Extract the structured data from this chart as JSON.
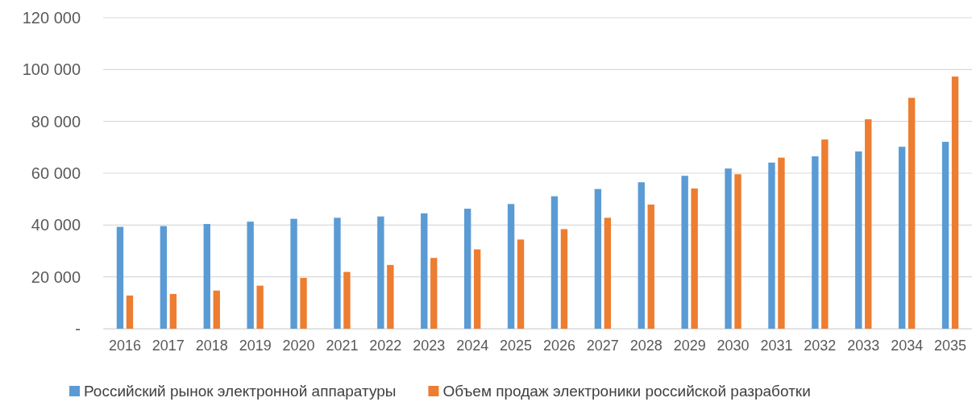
{
  "chart_data": {
    "type": "bar",
    "categories": [
      "2016",
      "2017",
      "2018",
      "2019",
      "2020",
      "2021",
      "2022",
      "2023",
      "2024",
      "2025",
      "2026",
      "2027",
      "2028",
      "2029",
      "2030",
      "2031",
      "2032",
      "2033",
      "2034",
      "2035"
    ],
    "series": [
      {
        "name": "Российский рынок электронной аппаратуры",
        "color": "#5b9bd5",
        "values": [
          39300,
          39600,
          40400,
          41300,
          42400,
          42800,
          43300,
          44500,
          46300,
          48100,
          51100,
          53900,
          56500,
          59000,
          61800,
          64100,
          66500,
          68400,
          70200,
          72100
        ]
      },
      {
        "name": "Объем продаж электроники российской разработки",
        "color": "#ed7d31",
        "values": [
          12800,
          13400,
          14700,
          16600,
          19600,
          21900,
          24600,
          27300,
          30600,
          34400,
          38400,
          42800,
          47900,
          54100,
          59600,
          66000,
          73000,
          80800,
          89100,
          97300
        ]
      }
    ],
    "ylim": [
      0,
      120000
    ],
    "yticks": [
      {
        "value": 0,
        "label": "-"
      },
      {
        "value": 20000,
        "label": "20 000"
      },
      {
        "value": 40000,
        "label": "40 000"
      },
      {
        "value": 60000,
        "label": "60 000"
      },
      {
        "value": 80000,
        "label": "80 000"
      },
      {
        "value": 100000,
        "label": "100 000"
      },
      {
        "value": 120000,
        "label": "120 000"
      }
    ],
    "grid": "y",
    "legend": "bottom"
  }
}
